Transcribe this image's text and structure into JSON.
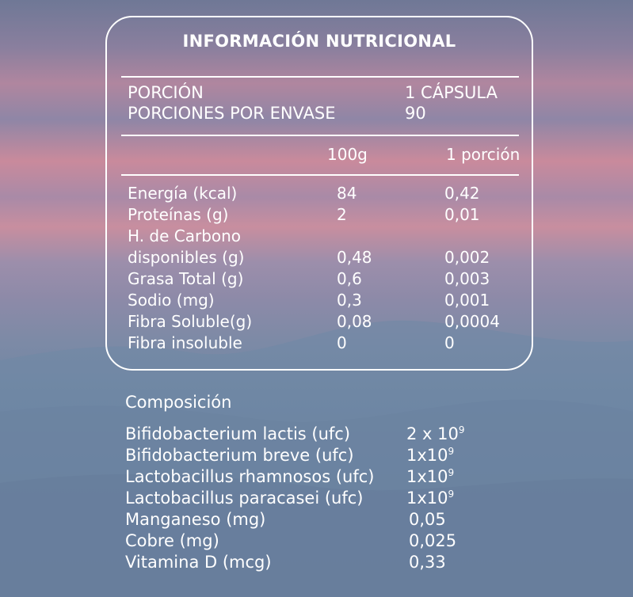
{
  "panel": {
    "title": "INFORMACIÓN NUTRICIONAL",
    "serving": {
      "portion_label": "PORCIÓN",
      "portion_value": "1 CÁPSULA",
      "per_container_label": "PORCIONES POR ENVASE",
      "per_container_value": "90"
    },
    "columns": {
      "per100": "100g",
      "perServing": "1 porción"
    },
    "rows": [
      {
        "label": "Energía (kcal)",
        "per100": "84",
        "perServing": "0,42"
      },
      {
        "label": "Proteínas (g)",
        "per100": "2",
        "perServing": "0,01"
      },
      {
        "label": "H. de Carbono",
        "per100": "",
        "perServing": ""
      },
      {
        "label": "disponibles (g)",
        "per100": "0,48",
        "perServing": "0,002"
      },
      {
        "label": "Grasa Total (g)",
        "per100": "0,6",
        "perServing": "0,003"
      },
      {
        "label": "Sodio (mg)",
        "per100": "0,3",
        "perServing": "0,001"
      },
      {
        "label": "Fibra Soluble(g)",
        "per100": "0,08",
        "perServing": "0,0004"
      },
      {
        "label": "Fibra insoluble",
        "per100": "0",
        "perServing": "0"
      }
    ]
  },
  "composition": {
    "heading": "Composición",
    "items": [
      {
        "label": "Bifidobacterium lactis (ufc)",
        "base": "2 x 10",
        "exp": "9"
      },
      {
        "label": "Bifidobacterium breve (ufc)",
        "base": "1x10",
        "exp": "9"
      },
      {
        "label": "Lactobacillus rhamnosos (ufc)",
        "base": "1x10",
        "exp": "9"
      },
      {
        "label": "Lactobacillus paracasei (ufc)",
        "base": "1x10",
        "exp": "9"
      },
      {
        "label": "Manganeso (mg)",
        "base": "0,05",
        "exp": ""
      },
      {
        "label": "Cobre (mg)",
        "base": "0,025",
        "exp": ""
      },
      {
        "label": "Vitamina D (mcg)",
        "base": "0,33",
        "exp": ""
      }
    ]
  }
}
